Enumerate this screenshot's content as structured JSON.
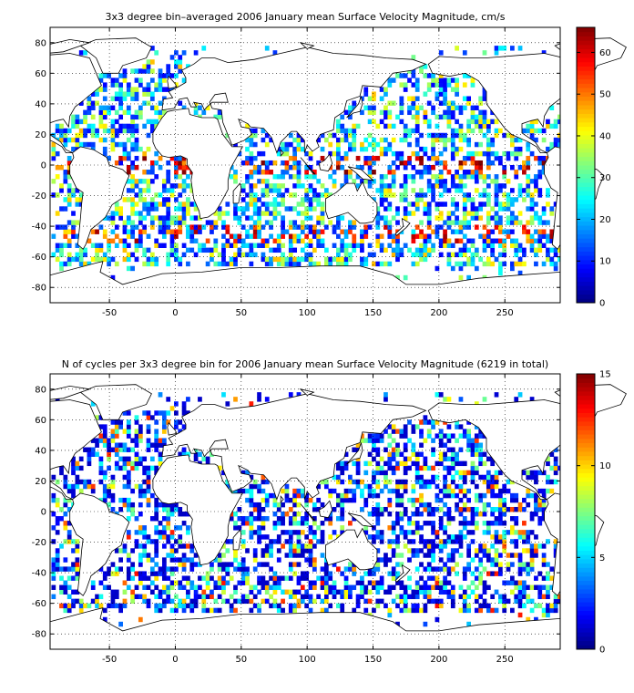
{
  "figure": {
    "panels": [
      {
        "id": "top",
        "title": "3x3 degree bin–averaged 2006 January mean Surface Velocity Magnitude, cm/s",
        "xticks": [
          "-50",
          "0",
          "50",
          "100",
          "150",
          "200",
          "250"
        ],
        "yticks": [
          "80",
          "60",
          "40",
          "20",
          "0",
          "-20",
          "-40",
          "-60",
          "-80"
        ],
        "colorbar_ticks": [
          "60",
          "50",
          "40",
          "30",
          "20",
          "10",
          "0"
        ],
        "colorbar_range": [
          0,
          66
        ]
      },
      {
        "id": "bottom",
        "title": "N of cycles per 3x3 degree bin for 2006 January mean Surface Velocity Magnitude (6219 in total)",
        "xticks": [
          "-50",
          "0",
          "50",
          "100",
          "150",
          "200",
          "250"
        ],
        "yticks": [
          "80",
          "60",
          "40",
          "20",
          "0",
          "-20",
          "-40",
          "-60",
          "-80"
        ],
        "colorbar_ticks": [
          "15",
          "10",
          "5",
          "0"
        ],
        "colorbar_range": [
          0,
          15
        ]
      }
    ]
  },
  "map": {
    "type": "gridded-bin map",
    "lon_range": [
      -95,
      292
    ],
    "lat_range": [
      -90,
      90
    ],
    "bin_size_deg": 3,
    "grid": "dotted",
    "colormap": "jet",
    "coastline_color": "#000000"
  }
}
